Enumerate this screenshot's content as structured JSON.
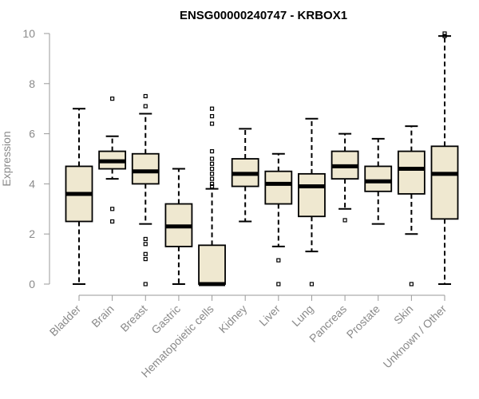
{
  "chart_data": {
    "type": "boxplot",
    "title": "ENSG00000240747 - KRBOX1",
    "xlabel": "",
    "ylabel": "Expression",
    "ylim": [
      0,
      10
    ],
    "yticks": [
      0,
      2,
      4,
      6,
      8,
      10
    ],
    "colors": {
      "box_fill": "#efe8d0",
      "stroke": "#000000",
      "axis": "#9a9a9a"
    },
    "categories": [
      "Bladder",
      "Brain",
      "Breast",
      "Gastric",
      "Hematopoietic cells",
      "Kidney",
      "Liver",
      "Lung",
      "Pancreas",
      "Prostate",
      "Skin",
      "Unknown / Other"
    ],
    "boxes": [
      {
        "name": "Bladder",
        "whisker_low": 0.0,
        "q1": 2.5,
        "median": 3.6,
        "q3": 4.7,
        "whisker_high": 7.0,
        "outliers": []
      },
      {
        "name": "Brain",
        "whisker_low": 4.2,
        "q1": 4.6,
        "median": 4.9,
        "q3": 5.3,
        "whisker_high": 5.9,
        "outliers": [
          7.4,
          3.0,
          2.5
        ]
      },
      {
        "name": "Breast",
        "whisker_low": 2.4,
        "q1": 4.0,
        "median": 4.5,
        "q3": 5.2,
        "whisker_high": 6.8,
        "outliers": [
          7.5,
          7.1,
          1.8,
          1.6,
          1.2,
          1.0,
          0.0
        ]
      },
      {
        "name": "Gastric",
        "whisker_low": 0.0,
        "q1": 1.5,
        "median": 2.3,
        "q3": 3.2,
        "whisker_high": 4.6,
        "outliers": []
      },
      {
        "name": "Hematopoietic cells",
        "whisker_low": 0.0,
        "q1": 0.0,
        "median": 0.0,
        "q3": 1.55,
        "whisker_high": 3.8,
        "outliers": [
          7.0,
          6.7,
          6.4,
          5.3,
          5.0,
          4.8,
          4.6,
          4.4,
          4.2,
          4.0,
          3.9
        ]
      },
      {
        "name": "Kidney",
        "whisker_low": 2.5,
        "q1": 3.9,
        "median": 4.4,
        "q3": 5.0,
        "whisker_high": 6.2,
        "outliers": []
      },
      {
        "name": "Liver",
        "whisker_low": 1.5,
        "q1": 3.2,
        "median": 4.0,
        "q3": 4.5,
        "whisker_high": 5.2,
        "outliers": [
          0.95,
          0.0
        ]
      },
      {
        "name": "Lung",
        "whisker_low": 1.3,
        "q1": 2.7,
        "median": 3.9,
        "q3": 4.4,
        "whisker_high": 6.6,
        "outliers": [
          0.0
        ]
      },
      {
        "name": "Pancreas",
        "whisker_low": 3.0,
        "q1": 4.2,
        "median": 4.7,
        "q3": 5.3,
        "whisker_high": 6.0,
        "outliers": [
          2.55
        ]
      },
      {
        "name": "Prostate",
        "whisker_low": 2.4,
        "q1": 3.7,
        "median": 4.1,
        "q3": 4.7,
        "whisker_high": 5.8,
        "outliers": []
      },
      {
        "name": "Skin",
        "whisker_low": 2.0,
        "q1": 3.6,
        "median": 4.6,
        "q3": 5.3,
        "whisker_high": 6.3,
        "outliers": [
          0.0
        ]
      },
      {
        "name": "Unknown / Other",
        "whisker_low": 0.0,
        "q1": 2.6,
        "median": 4.4,
        "q3": 5.5,
        "whisker_high": 9.9,
        "outliers": [
          10.0,
          9.9
        ]
      }
    ]
  }
}
